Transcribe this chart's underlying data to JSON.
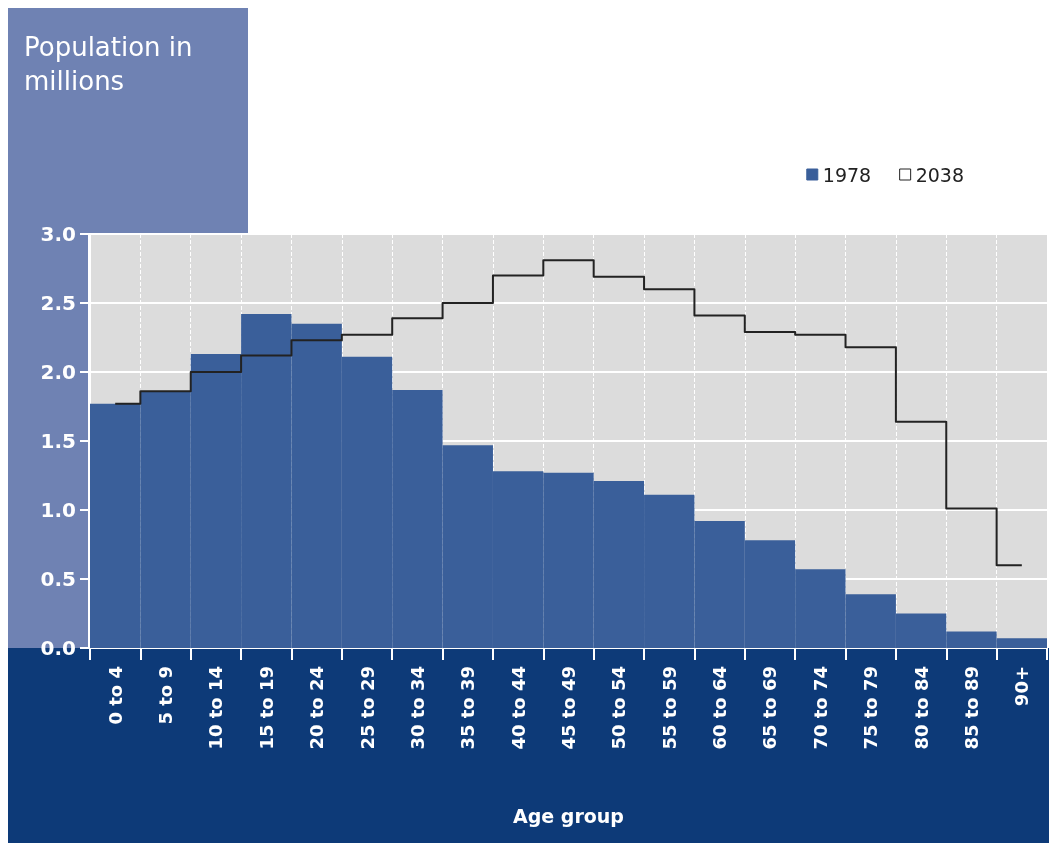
{
  "chart_data": {
    "type": "bar",
    "ylabel": "Population in millions",
    "xlabel": "Age group",
    "categories": [
      "0 to 4",
      "5 to 9",
      "10 to 14",
      "15 to 19",
      "20 to 24",
      "25 to 29",
      "30 to 34",
      "35 to 39",
      "40 to 44",
      "45 to 49",
      "50 to 54",
      "55 to 59",
      "60 to 64",
      "65 to 69",
      "70 to 74",
      "75 to 79",
      "80 to 84",
      "85 to 89",
      "90+"
    ],
    "series": [
      {
        "name": "2038",
        "type": "step",
        "color": "#222222",
        "values": [
          1.77,
          1.86,
          2.0,
          2.12,
          2.23,
          2.27,
          2.39,
          2.5,
          2.7,
          2.81,
          2.69,
          2.6,
          2.41,
          2.29,
          2.27,
          2.18,
          1.64,
          1.01,
          0.6
        ]
      },
      {
        "name": "1978",
        "color": "#3a5f9a",
        "values": [
          1.77,
          1.86,
          2.13,
          2.42,
          2.35,
          2.11,
          1.87,
          1.47,
          1.28,
          1.27,
          1.21,
          1.11,
          0.92,
          0.78,
          0.57,
          0.39,
          0.25,
          0.12,
          0.07
        ]
      }
    ],
    "ylim": [
      0,
      3
    ],
    "yticks": [
      {
        "value": 0,
        "label": "0.0"
      },
      0.5,
      {
        "value": 1,
        "label": "1.0"
      },
      1.5,
      {
        "value": 2,
        "label": "2.0"
      },
      2.5,
      {
        "value": 3,
        "label": "3.0"
      }
    ],
    "grid": true,
    "legend": "top right"
  }
}
